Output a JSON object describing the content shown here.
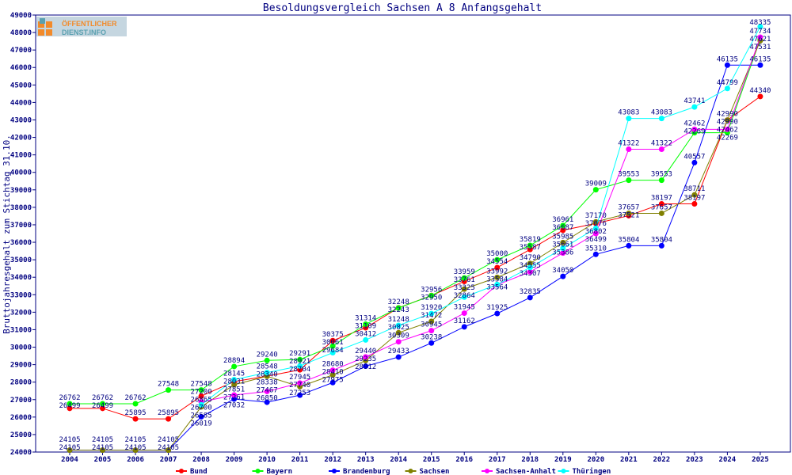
{
  "logo_text": "ÖFFENTLICHER DIENST.INFO",
  "chart_data": {
    "type": "line",
    "title": "Besoldungsvergleich Sachsen A 8 Anfangsgehalt",
    "xlabel": "",
    "ylabel": "Bruttojahresgehalt zum Stichtag 31.10.",
    "ylim": [
      24000,
      49000
    ],
    "yticks": [
      24000,
      25000,
      26000,
      27000,
      28000,
      29000,
      30000,
      31000,
      32000,
      33000,
      34000,
      35000,
      36000,
      37000,
      38000,
      39000,
      40000,
      41000,
      42000,
      43000,
      44000,
      45000,
      46000,
      47000,
      48000,
      49000
    ],
    "categories": [
      "2004",
      "2005",
      "2006",
      "2007",
      "2008",
      "2009",
      "2010",
      "2011",
      "2012",
      "2013",
      "2014",
      "2015",
      "2016",
      "2017",
      "2018",
      "2019",
      "2020",
      "2021",
      "2022",
      "2023",
      "2024",
      "2025"
    ],
    "legend_position": "bottom",
    "grid": false,
    "series": [
      {
        "name": "Bund",
        "color": "#ff0000",
        "values": [
          26499,
          26499,
          25895,
          25895,
          27200,
          28031,
          28340,
          28704,
          30375,
          31109,
          32248,
          32956,
          33761,
          34554,
          35587,
          36687,
          37076,
          37521,
          38197,
          38197,
          42990,
          44340
        ]
      },
      {
        "name": "Bayern",
        "color": "#00ff00",
        "values": [
          26762,
          26762,
          26762,
          27548,
          27548,
          28894,
          29240,
          29291,
          30061,
          31314,
          32243,
          32950,
          33959,
          35000,
          35819,
          36961,
          39009,
          39553,
          39553,
          42269,
          42269,
          47621
        ]
      },
      {
        "name": "Brandenburg",
        "color": "#0000ff",
        "values": [
          24105,
          24105,
          24105,
          24105,
          26019,
          27032,
          26850,
          27253,
          27975,
          28912,
          29433,
          30238,
          31162,
          31925,
          32835,
          34050,
          35310,
          35804,
          35804,
          40557,
          46135,
          46135
        ]
      },
      {
        "name": "Sachsen",
        "color": "#808000",
        "values": [
          24105,
          24105,
          24105,
          24105,
          26585,
          27851,
          28338,
          27740,
          28410,
          29235,
          30825,
          31472,
          33325,
          33992,
          34790,
          35985,
          37170,
          37657,
          37657,
          38711,
          42990,
          47531
        ]
      },
      {
        "name": "Sachsen-Anhalt",
        "color": "#ff00ff",
        "values": [
          null,
          null,
          null,
          null,
          26865,
          27261,
          27467,
          27945,
          28680,
          29440,
          30309,
          30945,
          31945,
          33564,
          34307,
          35386,
          36499,
          41322,
          41322,
          42462,
          42462,
          47734
        ]
      },
      {
        "name": "Thüringen",
        "color": "#00ffff",
        "values": [
          null,
          null,
          null,
          null,
          26700,
          28145,
          28548,
          28921,
          29684,
          30412,
          31248,
          31920,
          32864,
          33584,
          34555,
          35661,
          36802,
          43083,
          43083,
          43741,
          44799,
          48335
        ]
      }
    ]
  }
}
